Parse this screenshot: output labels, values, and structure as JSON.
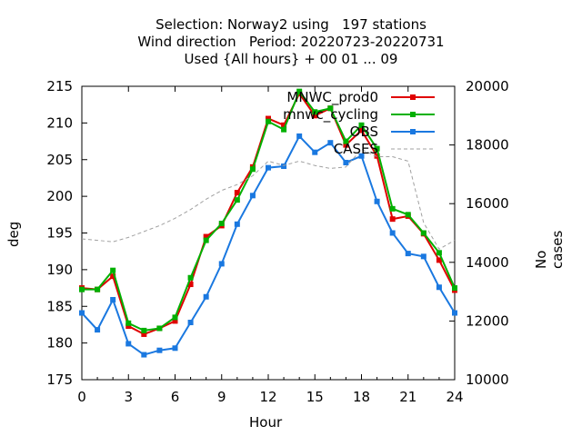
{
  "title_lines": [
    "Selection: Norway2 using   197 stations",
    "Wind direction   Period: 20220723-20220731",
    "Used {All hours} + 00 01 ... 09"
  ],
  "chart_data": {
    "type": "line",
    "xlabel": "Hour",
    "ylabel": "deg",
    "y2label": "No cases",
    "xlim": [
      0,
      24
    ],
    "ylim": [
      175,
      215
    ],
    "y2lim": [
      10000,
      20000
    ],
    "xticks": [
      "0",
      "3",
      "6",
      "9",
      "12",
      "15",
      "18",
      "21",
      "24"
    ],
    "yticks": [
      "175",
      "180",
      "185",
      "190",
      "195",
      "200",
      "205",
      "210",
      "215"
    ],
    "y2ticks": [
      "10000",
      "12000",
      "14000",
      "16000",
      "18000",
      "20000"
    ],
    "grid": false,
    "legend_position": "top-right",
    "x": [
      0,
      1,
      2,
      3,
      4,
      5,
      6,
      7,
      8,
      9,
      10,
      11,
      12,
      13,
      14,
      15,
      16,
      17,
      18,
      19,
      20,
      21,
      22,
      23,
      24
    ],
    "series": [
      {
        "name": "MNWC_prod0",
        "color": "#e00000",
        "axis": "left",
        "style": "line-points",
        "values": [
          187.5,
          187.3,
          189.1,
          182.3,
          181.2,
          182.0,
          183.0,
          188.0,
          194.5,
          196.0,
          200.5,
          204.0,
          210.6,
          209.7,
          214.0,
          211.0,
          212.0,
          207.0,
          209.0,
          205.5,
          196.9,
          197.3,
          194.9,
          191.3,
          187.2
        ]
      },
      {
        "name": "mnwc_cycling",
        "color": "#00b000",
        "axis": "left",
        "style": "line-points",
        "values": [
          187.3,
          187.3,
          189.9,
          182.7,
          181.7,
          182.0,
          183.5,
          188.9,
          194.0,
          196.3,
          199.5,
          203.7,
          210.2,
          209.1,
          214.3,
          211.5,
          212.0,
          207.5,
          209.7,
          206.5,
          198.3,
          197.5,
          195.0,
          192.3,
          187.5
        ]
      },
      {
        "name": "OBS",
        "color": "#1a78e0",
        "axis": "left",
        "style": "line-points",
        "values": [
          184.1,
          181.8,
          185.9,
          179.9,
          178.4,
          179.0,
          179.3,
          182.8,
          186.3,
          190.8,
          196.2,
          200.1,
          203.9,
          204.1,
          208.2,
          206.0,
          207.3,
          204.6,
          205.5,
          199.3,
          195.0,
          192.2,
          191.8,
          187.6,
          184.1
        ]
      },
      {
        "name": "CASES",
        "color": "#a0a0a0",
        "axis": "right",
        "style": "dashed",
        "values": [
          14800,
          14750,
          14700,
          14850,
          15050,
          15250,
          15500,
          15800,
          16150,
          16450,
          16650,
          16950,
          17450,
          17300,
          17450,
          17300,
          17200,
          17250,
          17850,
          17600,
          17600,
          17450,
          15350,
          14450,
          14750
        ]
      }
    ]
  }
}
